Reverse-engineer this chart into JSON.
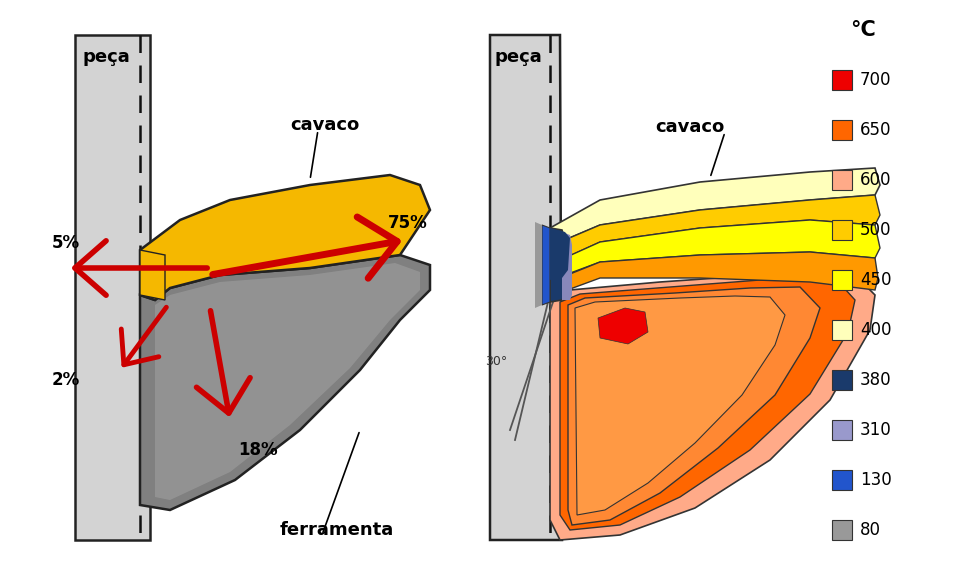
{
  "background_color": "#ffffff",
  "legend_items": [
    {
      "label": "700",
      "color": "#ee0000"
    },
    {
      "label": "650",
      "color": "#ff6600"
    },
    {
      "label": "600",
      "color": "#ffaa88"
    },
    {
      "label": "500",
      "color": "#ffcc00"
    },
    {
      "label": "450",
      "color": "#ffff00"
    },
    {
      "label": "400",
      "color": "#ffffbb"
    },
    {
      "label": "380",
      "color": "#1a3a6b"
    },
    {
      "label": "310",
      "color": "#9999cc"
    },
    {
      "label": "130",
      "color": "#2255cc"
    },
    {
      "label": "80",
      "color": "#999999"
    }
  ],
  "legend_title": "°C"
}
